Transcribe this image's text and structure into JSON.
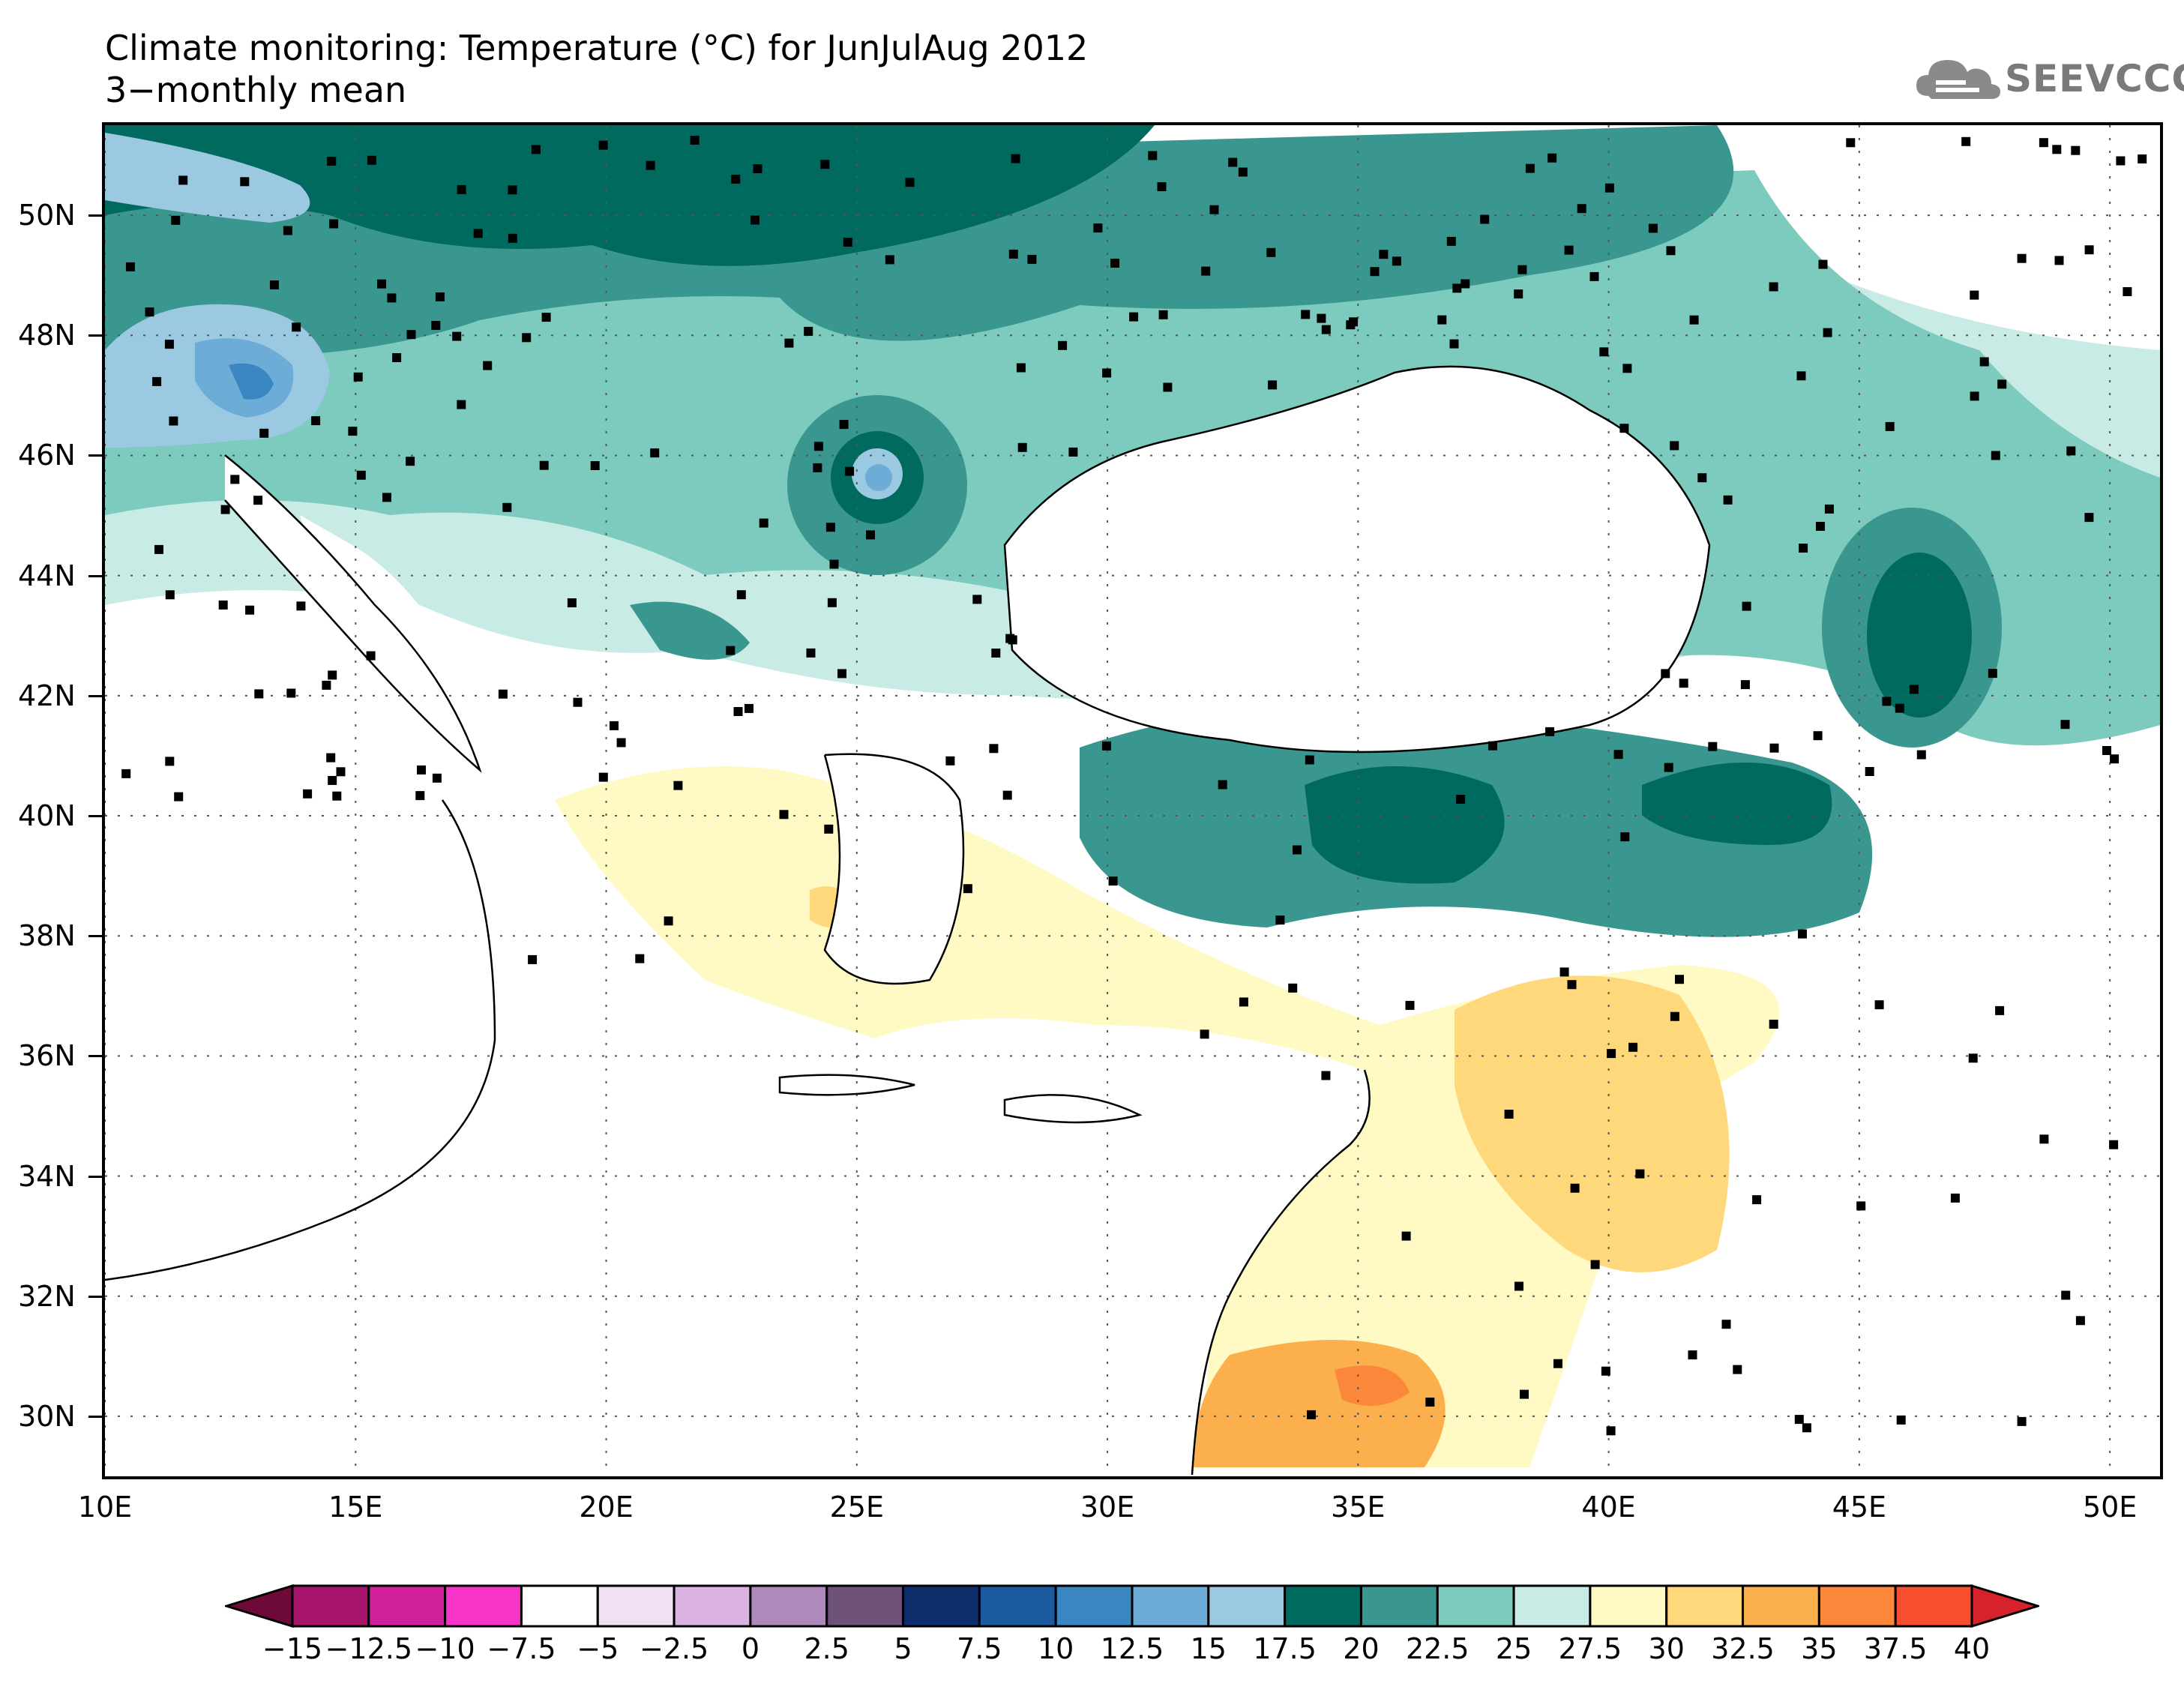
{
  "title": {
    "line1": "Climate monitoring: Temperature (°C) for JunJulAug 2012",
    "line2": "3−monthly mean"
  },
  "logo": {
    "text": "SEEVCCC",
    "icon": "cloud-icon"
  },
  "map": {
    "lat_labels": [
      "50N",
      "48N",
      "46N",
      "44N",
      "42N",
      "40N",
      "38N",
      "36N",
      "34N",
      "32N",
      "30N"
    ],
    "lon_labels": [
      "10E",
      "15E",
      "20E",
      "25E",
      "30E",
      "35E",
      "40E",
      "45E",
      "50E"
    ],
    "lon_range": [
      10,
      51
    ],
    "lat_range": [
      29,
      51.5
    ],
    "grid": "dotted",
    "stations": "black square markers",
    "field": "3-monthly mean temperature (°C)"
  },
  "colorbar": {
    "labels": [
      "−15",
      "−12.5",
      "−10",
      "−7.5",
      "−5",
      "−2.5",
      "0",
      "2.5",
      "5",
      "7.5",
      "10",
      "12.5",
      "15",
      "17.5",
      "20",
      "22.5",
      "25",
      "27.5",
      "30",
      "32.5",
      "35",
      "37.5",
      "40"
    ],
    "colors": [
      "#6e0a3a",
      "#a6136b",
      "#d0209a",
      "#f734c8",
      "#ffffff",
      "#efe1f2",
      "#dab3e3",
      "#ae8abc",
      "#6e5279",
      "#0e2d6b",
      "#1c5aa0",
      "#3a86c1",
      "#6eacd8",
      "#9cc9e2",
      "#006a5e",
      "#3a978f",
      "#7dcbbf",
      "#c9ebe5",
      "#fffac3",
      "#fed87a",
      "#fcaf4d",
      "#fb873b",
      "#f64e2f",
      "#d6232b"
    ]
  }
}
